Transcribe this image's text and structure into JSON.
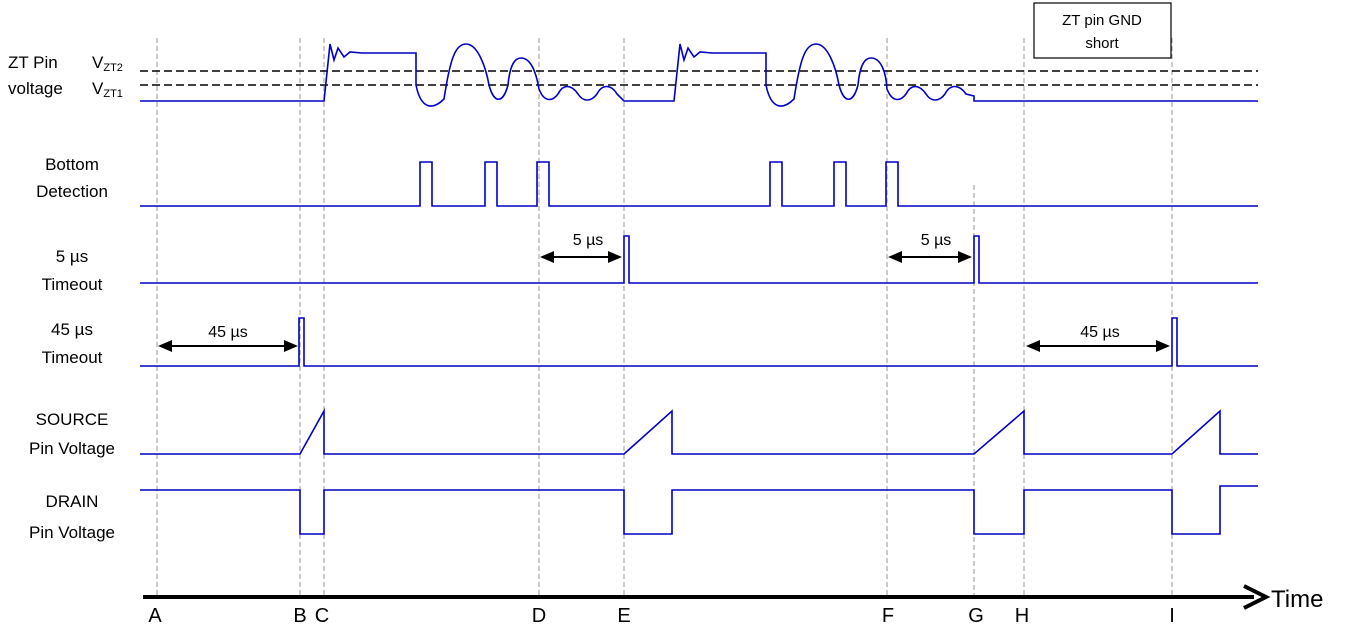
{
  "signals": {
    "zt": {
      "line1": "ZT Pin",
      "line2": "voltage",
      "vzt2_main": "V",
      "vzt2_sub": "ZT2",
      "vzt1_main": "V",
      "vzt1_sub": "ZT1"
    },
    "bottom": {
      "line1": "Bottom",
      "line2": "Detection"
    },
    "t5": {
      "line1": "5 µs",
      "line2": "Timeout"
    },
    "t45": {
      "line1": "45 µs",
      "line2": "Timeout"
    },
    "source": {
      "line1": "SOURCE",
      "line2": "Pin Voltage"
    },
    "drain": {
      "line1": "DRAIN",
      "line2": "Pin Voltage"
    }
  },
  "durations": {
    "d45_left": "45 µs",
    "d5_left": "5 µs",
    "d5_right": "5 µs",
    "d45_right": "45 µs"
  },
  "annotation_box": {
    "line1": "ZT pin GND",
    "line2": "short"
  },
  "time_axis": {
    "label": "Time",
    "markers": [
      "A",
      "B",
      "C",
      "D",
      "E",
      "F",
      "G",
      "H",
      "I"
    ]
  },
  "colors": {
    "signal": "#0000c8",
    "guide": "#9a9a9a",
    "text": "#000000"
  }
}
